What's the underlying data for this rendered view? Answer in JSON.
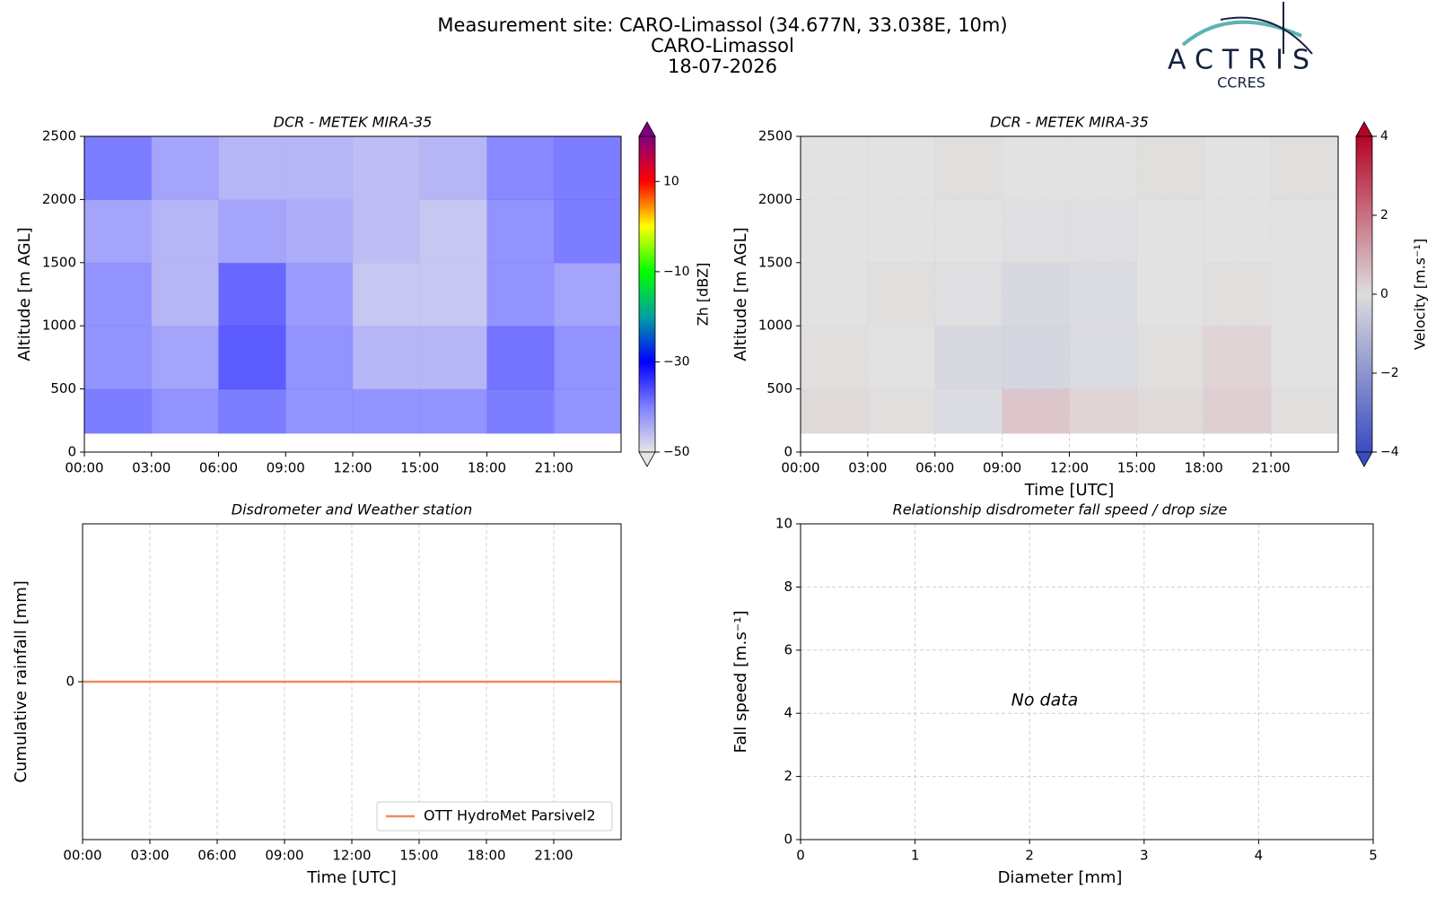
{
  "header": {
    "title": [
      "Measurement site: CARO-Limassol (34.677N, 33.038E, 10m)",
      "CARO-Limassol",
      "18-07-2026"
    ]
  },
  "logo": {
    "name": "ACTRIS",
    "subtitle": "CCRES"
  },
  "chart_data": [
    {
      "type": "heatmap",
      "title": "DCR - METEK MIRA-35",
      "ylabel": "Altitude [m AGL]",
      "colorbar_label": "Zh [dBZ]",
      "xbins": [
        0,
        3,
        6,
        9,
        12,
        15,
        18,
        21,
        24
      ],
      "ybins": [
        150,
        500,
        1000,
        1500,
        2000,
        2500
      ],
      "z": [
        [
          -38,
          -40,
          -38,
          -40,
          -40,
          -40,
          -38,
          -40
        ],
        [
          -40,
          -42,
          -35,
          -40,
          -44,
          -44,
          -37,
          -40
        ],
        [
          -40,
          -44,
          -36,
          -41,
          -46,
          -46,
          -40,
          -42
        ],
        [
          -42,
          -44,
          -42,
          -43,
          -45,
          -46,
          -40,
          -38
        ],
        [
          -38,
          -42,
          -44,
          -44,
          -45,
          -44,
          -39,
          -38
        ]
      ],
      "clim": [
        -50,
        20
      ],
      "cticks": [
        {
          "value": -50,
          "label": "−50"
        },
        {
          "value": -30,
          "label": "−30"
        },
        {
          "value": -10,
          "label": "−10"
        },
        10
      ],
      "colormap": [
        "#e6e6e6",
        "#8080ff",
        "#0000ff",
        "#00a0a0",
        "#00ff00",
        "#ffff00",
        "#ff0000",
        "#800080"
      ],
      "xlim": [
        0,
        24
      ],
      "xticks": [
        {
          "value": 0,
          "label": "00:00"
        },
        {
          "value": 3,
          "label": "03:00"
        },
        {
          "value": 6,
          "label": "06:00"
        },
        {
          "value": 9,
          "label": "09:00"
        },
        {
          "value": 12,
          "label": "12:00"
        },
        {
          "value": 15,
          "label": "15:00"
        },
        {
          "value": 18,
          "label": "18:00"
        },
        {
          "value": 21,
          "label": "21:00"
        }
      ],
      "ylim": [
        0,
        2500
      ],
      "yticks": [
        0,
        500,
        1000,
        1500,
        2000,
        2500
      ],
      "grid": false
    },
    {
      "type": "heatmap",
      "title": "DCR - METEK MIRA-35",
      "xlabel": "Time [UTC]",
      "ylabel": "Altitude [m AGL]",
      "colorbar_label": "Velocity [m.s⁻¹]",
      "xbins": [
        0,
        3,
        6,
        9,
        12,
        15,
        18,
        21,
        24
      ],
      "ybins": [
        150,
        500,
        1000,
        1500,
        2000,
        2500
      ],
      "z": [
        [
          0.2,
          0.1,
          -0.2,
          0.6,
          0.3,
          0.2,
          0.4,
          0.1
        ],
        [
          0.1,
          0.0,
          -0.3,
          -0.4,
          -0.2,
          0.1,
          0.3,
          0.0
        ],
        [
          0.0,
          0.1,
          -0.1,
          -0.3,
          -0.2,
          0.0,
          0.1,
          0.0
        ],
        [
          0.0,
          0.0,
          0.0,
          -0.1,
          -0.1,
          0.0,
          0.0,
          0.0
        ],
        [
          0.0,
          0.0,
          0.1,
          0.0,
          0.0,
          0.1,
          0.0,
          0.1
        ]
      ],
      "clim": [
        -4,
        4
      ],
      "cticks": [
        {
          "value": -4,
          "label": "−4"
        },
        {
          "value": -2,
          "label": "−2"
        },
        0,
        2,
        4
      ],
      "colormap": [
        "#3b4cc0",
        "#dddddd",
        "#b40426"
      ],
      "xlim": [
        0,
        24
      ],
      "xticks": [
        {
          "value": 0,
          "label": "00:00"
        },
        {
          "value": 3,
          "label": "03:00"
        },
        {
          "value": 6,
          "label": "06:00"
        },
        {
          "value": 9,
          "label": "09:00"
        },
        {
          "value": 12,
          "label": "12:00"
        },
        {
          "value": 15,
          "label": "15:00"
        },
        {
          "value": 18,
          "label": "18:00"
        },
        {
          "value": 21,
          "label": "21:00"
        }
      ],
      "ylim": [
        0,
        2500
      ],
      "yticks": [
        0,
        500,
        1000,
        1500,
        2000,
        2500
      ],
      "grid": true
    },
    {
      "type": "line",
      "title": "Disdrometer and Weather station",
      "xlabel": "Time [UTC]",
      "ylabel": "Cumulative rainfall [mm]",
      "x": [
        0,
        24
      ],
      "series": [
        {
          "name": "OTT HydroMet Parsivel2",
          "color": "#f08a5d",
          "values": [
            0,
            0
          ]
        }
      ],
      "xlim": [
        0,
        24
      ],
      "xticks": [
        {
          "value": 0,
          "label": "00:00"
        },
        {
          "value": 3,
          "label": "03:00"
        },
        {
          "value": 6,
          "label": "06:00"
        },
        {
          "value": 9,
          "label": "09:00"
        },
        {
          "value": 12,
          "label": "12:00"
        },
        {
          "value": 15,
          "label": "15:00"
        },
        {
          "value": 18,
          "label": "18:00"
        },
        {
          "value": 21,
          "label": "21:00"
        }
      ],
      "ylim": [
        -1,
        1
      ],
      "yticks": [
        0
      ],
      "grid": true,
      "legend": "lower right"
    },
    {
      "type": "scatter",
      "title": "Relationship disdrometer fall speed / drop size",
      "xlabel": "Diameter [mm]",
      "ylabel": "Fall speed [m.s⁻¹]",
      "annotation": "No data",
      "xlim": [
        0,
        5
      ],
      "xticks": [
        0,
        1,
        2,
        3,
        4,
        5
      ],
      "ylim": [
        0,
        10
      ],
      "yticks": [
        0,
        2,
        4,
        6,
        8,
        10
      ],
      "grid": true
    }
  ]
}
